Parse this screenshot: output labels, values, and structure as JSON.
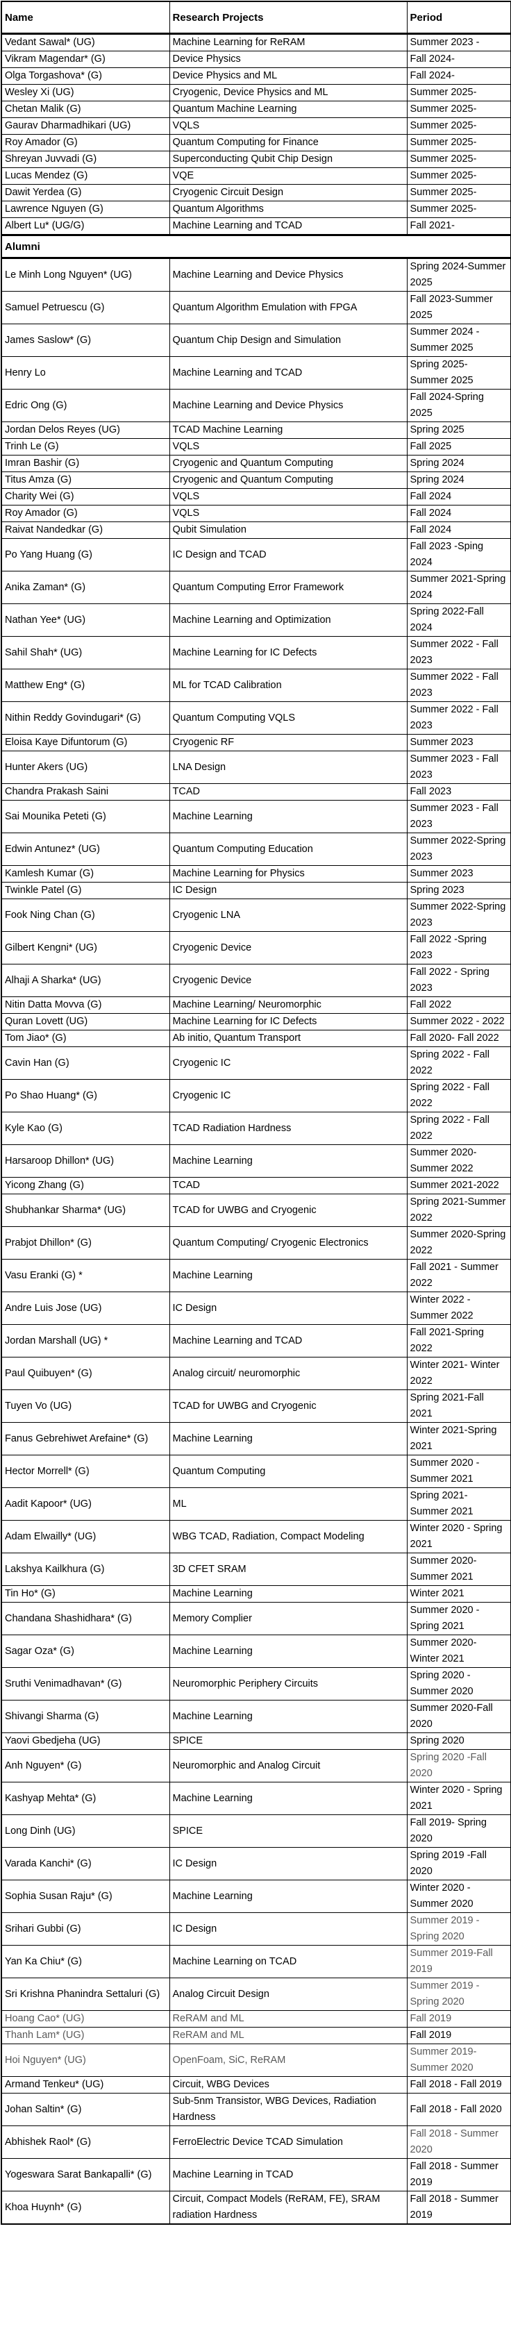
{
  "table": {
    "columns": [
      "Name",
      "Research Projects",
      "Period"
    ],
    "section_label": "Alumni",
    "grey_text_color": "#595959",
    "current_members": [
      {
        "name": "Vedant Sawal* (UG)",
        "project": "Machine Learning for ReRAM",
        "period": "Summer 2023 -"
      },
      {
        "name": "Vikram Magendar* (G)",
        "project": "Device Physics",
        "period": "Fall 2024-"
      },
      {
        "name": "Olga Torgashova* (G)",
        "project": "Device Physics and ML",
        "period": "Fall 2024-"
      },
      {
        "name": "Wesley Xi (UG)",
        "project": "Cryogenic, Device Physics and ML",
        "period": "Summer 2025-"
      },
      {
        "name": "Chetan Malik (G)",
        "project": "Quantum Machine Learning",
        "period": "Summer 2025-"
      },
      {
        "name": "Gaurav Dharmadhikari (UG)",
        "project": "VQLS",
        "period": "Summer 2025-"
      },
      {
        "name": "Roy Amador (G)",
        "project": "Quantum Computing for Finance",
        "period": "Summer 2025-"
      },
      {
        "name": "Shreyan Juvvadi (G)",
        "project": "Superconducting Qubit Chip Design",
        "period": "Summer 2025-"
      },
      {
        "name": "Lucas Mendez (G)",
        "project": "VQE",
        "period": "Summer 2025-"
      },
      {
        "name": "Dawit Yerdea (G)",
        "project": "Cryogenic Circuit Design",
        "period": "Summer 2025-"
      },
      {
        "name": "Lawrence Nguyen (G)",
        "project": "Quantum Algorithms",
        "period": "Summer 2025-"
      },
      {
        "name": "Albert Lu* (UG/G)",
        "project": "Machine Learning and TCAD",
        "period": "Fall 2021-"
      }
    ],
    "alumni_members": [
      {
        "name": "Le Minh Long Nguyen* (UG)",
        "project": "Machine Learning and Device Physics",
        "period": "Spring 2024-Summer 2025"
      },
      {
        "name": "Samuel Petruescu (G)",
        "project": "Quantum Algorithm Emulation with FPGA",
        "period": "Fall 2023-Summer 2025"
      },
      {
        "name": "James Saslow* (G)",
        "project": "Quantum Chip Design and Simulation",
        "period": "Summer 2024 - Summer 2025"
      },
      {
        "name": "Henry Lo",
        "project": "Machine Learning and TCAD",
        "period": "Spring 2025- Summer 2025"
      },
      {
        "name": "Edric Ong (G)",
        "project": "Machine Learning and Device Physics",
        "period": "Fall 2024-Spring 2025"
      },
      {
        "name": "Jordan Delos Reyes (UG)",
        "project": "TCAD Machine Learning",
        "period": "Spring 2025"
      },
      {
        "name": "Trinh Le (G)",
        "project": "VQLS",
        "period": "Fall 2025"
      },
      {
        "name": "Imran Bashir (G)",
        "project": "Cryogenic and Quantum Computing",
        "period": "Spring 2024"
      },
      {
        "name": "Titus Amza (G)",
        "project": "Cryogenic and Quantum Computing",
        "period": "Spring 2024"
      },
      {
        "name": "Charity Wei (G)",
        "project": "VQLS",
        "period": "Fall 2024"
      },
      {
        "name": "Roy Amador (G)",
        "project": "VQLS",
        "period": "Fall 2024"
      },
      {
        "name": "Raivat Nandedkar (G)",
        "project": "Qubit Simulation",
        "period": "Fall 2024"
      },
      {
        "name": "Po Yang Huang (G)",
        "project": "IC Design and TCAD",
        "period": "Fall 2023 -Sping 2024"
      },
      {
        "name": "Anika Zaman* (G)",
        "project": "Quantum Computing Error Framework",
        "period": "Summer 2021-Spring 2024"
      },
      {
        "name": "Nathan Yee* (UG)",
        "project": "Machine Learning and Optimization",
        "period": "Spring 2022-Fall 2024"
      },
      {
        "name": "Sahil Shah* (UG)",
        "project": "Machine Learning for IC Defects",
        "period": "Summer 2022 - Fall 2023"
      },
      {
        "name": "Matthew Eng* (G)",
        "project": "ML for TCAD Calibration",
        "period": "Summer 2022 - Fall 2023"
      },
      {
        "name": "Nithin Reddy Govindugari* (G)",
        "project": "Quantum Computing VQLS",
        "period": "Summer 2022 - Fall 2023"
      },
      {
        "name": "Eloisa Kaye Difuntorum (G)",
        "project": "Cryogenic RF",
        "period": "Summer 2023"
      },
      {
        "name": "Hunter Akers (UG)",
        "project": "LNA Design",
        "period": "Summer 2023 - Fall 2023"
      },
      {
        "name": "Chandra Prakash Saini",
        "project": "TCAD",
        "period": "Fall 2023"
      },
      {
        "name": "Sai Mounika Peteti (G)",
        "project": "Machine Learning",
        "period": "Summer 2023 - Fall 2023"
      },
      {
        "name": "Edwin Antunez* (UG)",
        "project": "Quantum Computing Education",
        "period": "Summer 2022-Spring 2023"
      },
      {
        "name": "Kamlesh Kumar (G)",
        "project": "Machine Learning for Physics",
        "period": "Summer 2023"
      },
      {
        "name": "Twinkle Patel (G)",
        "project": "IC Design",
        "period": "Spring 2023"
      },
      {
        "name": "Fook Ning Chan (G)",
        "project": "Cryogenic LNA",
        "period": "Summer 2022-Spring 2023"
      },
      {
        "name": "Gilbert Kengni* (UG)",
        "project": "Cryogenic Device",
        "period": "Fall 2022 -Spring 2023"
      },
      {
        "name": "Alhaji A Sharka* (UG)",
        "project": "Cryogenic Device",
        "period": "Fall 2022 - Spring 2023"
      },
      {
        "name": "Nitin Datta Movva (G)",
        "project": "Machine Learning/ Neuromorphic",
        "period": "Fall 2022"
      },
      {
        "name": "Quran Lovett (UG)",
        "project": "Machine Learning for IC Defects",
        "period": "Summer 2022 - 2022"
      },
      {
        "name": "Tom Jiao* (G)",
        "project": "Ab initio, Quantum Transport",
        "period": "Fall 2020- Fall 2022"
      },
      {
        "name": "Cavin Han (G)",
        "project": "Cryogenic IC",
        "period": "Spring 2022 - Fall 2022"
      },
      {
        "name": "Po Shao Huang* (G)",
        "project": "Cryogenic IC",
        "period": "Spring 2022 - Fall 2022"
      },
      {
        "name": "Kyle Kao (G)",
        "project": "TCAD Radiation Hardness",
        "period": "Spring 2022 - Fall 2022"
      },
      {
        "name": "Harsaroop Dhillon* (UG)",
        "project": "Machine Learning",
        "period": "Summer 2020-Summer 2022"
      },
      {
        "name": "Yicong Zhang (G)",
        "project": "TCAD",
        "period": "Summer 2021-2022"
      },
      {
        "name": "Shubhankar Sharma* (UG)",
        "project": "TCAD for UWBG and Cryogenic",
        "period": "Spring 2021-Summer 2022"
      },
      {
        "name": "Prabjot Dhillon* (G)",
        "project": "Quantum Computing/ Cryogenic Electronics",
        "period": "Summer 2020-Spring 2022"
      },
      {
        "name": "Vasu Eranki (G) *",
        "project": "Machine Learning",
        "period": "Fall 2021 - Summer 2022"
      },
      {
        "name": "Andre Luis Jose (UG)",
        "project": "IC Design",
        "period": "Winter 2022 - Summer 2022"
      },
      {
        "name": "Jordan Marshall (UG) *",
        "project": "Machine Learning and TCAD",
        "period": "Fall 2021-Spring 2022"
      },
      {
        "name": "Paul Quibuyen* (G)",
        "project": "Analog circuit/ neuromorphic",
        "period": "Winter 2021- Winter 2022"
      },
      {
        "name": "Tuyen Vo (UG)",
        "project": "TCAD for UWBG and Cryogenic",
        "period": "Spring 2021-Fall 2021"
      },
      {
        "name": "Fanus Gebrehiwet Arefaine* (G)",
        "project": "Machine Learning",
        "period": "Winter 2021-Spring 2021"
      },
      {
        "name": "Hector Morrell* (G)",
        "project": "Quantum Computing",
        "period": "Summer 2020 - Summer 2021"
      },
      {
        "name": "Aadit Kapoor* (UG)",
        "project": "ML",
        "period": "Spring 2021- Summer 2021"
      },
      {
        "name": "Adam Elwailly* (UG)",
        "project": "WBG TCAD, Radiation, Compact Modeling",
        "period": "Winter 2020 - Spring 2021"
      },
      {
        "name": "Lakshya Kailkhura (G)",
        "project": "3D CFET SRAM",
        "period": "Summer 2020- Summer 2021"
      },
      {
        "name": "Tin Ho* (G)",
        "project": "Machine Learning",
        "period": "Winter 2021"
      },
      {
        "name": "Chandana Shashidhara* (G)",
        "project": "Memory Complier",
        "period": "Summer 2020 - Spring 2021"
      },
      {
        "name": "Sagar Oza* (G)",
        "project": "Machine Learning",
        "period": "Summer 2020- Winter 2021"
      },
      {
        "name": "Sruthi Venimadhavan* (G)",
        "project": "Neuromorphic Periphery Circuits",
        "period": "Spring 2020 - Summer 2020"
      },
      {
        "name": "Shivangi Sharma (G)",
        "project": "Machine Learning",
        "period": "Summer 2020-Fall 2020"
      },
      {
        "name": "Yaovi Gbedjeha (UG)",
        "project": "SPICE",
        "period": "Spring 2020"
      },
      {
        "name": "Anh Nguyen* (G)",
        "project": "Neuromorphic and Analog Circuit",
        "period": "Spring 2020 -Fall 2020",
        "grey": [
          "period"
        ]
      },
      {
        "name": "Kashyap Mehta* (G)",
        "project": "Machine Learning",
        "period": "Winter 2020 - Spring 2021"
      },
      {
        "name": "Long Dinh (UG)",
        "project": "SPICE",
        "period": "Fall 2019- Spring 2020"
      },
      {
        "name": "Varada Kanchi* (G)",
        "project": "IC Design",
        "period": "Spring 2019 -Fall 2020"
      },
      {
        "name": "Sophia Susan Raju* (G)",
        "project": "Machine Learning",
        "period": "Winter 2020 - Summer 2020"
      },
      {
        "name": "Srihari Gubbi (G)",
        "project": "IC Design",
        "period": "Summer 2019 - Spring 2020",
        "grey": [
          "period"
        ]
      },
      {
        "name": "Yan Ka Chiu* (G)",
        "project": "Machine Learning on TCAD",
        "period": "Summer 2019-Fall 2019",
        "grey": [
          "period"
        ]
      },
      {
        "name": "Sri Krishna Phanindra Settaluri (G)",
        "project": "Analog Circuit Design",
        "period": "Summer 2019 - Spring 2020",
        "grey": [
          "period"
        ]
      },
      {
        "name": "Hoang Cao* (UG)",
        "project": "ReRAM and ML",
        "period": "Fall 2019",
        "grey": [
          "name",
          "project",
          "period"
        ]
      },
      {
        "name": "Thanh Lam* (UG)",
        "project": "ReRAM and ML",
        "period": "Fall 2019",
        "grey": [
          "name",
          "project"
        ]
      },
      {
        "name": "Hoi Nguyen* (UG)",
        "project": "OpenFoam, SiC, ReRAM",
        "period": "Summer 2019- Summer 2020",
        "grey": [
          "name",
          "project",
          "period"
        ]
      },
      {
        "name": "Armand Tenkeu* (UG)",
        "project": "Circuit, WBG Devices",
        "period": "Fall 2018 - Fall 2019"
      },
      {
        "name": "Johan Saltin* (G)",
        "project": "Sub-5nm Transistor, WBG Devices, Radiation Hardness",
        "period": "Fall 2018 - Fall 2020"
      },
      {
        "name": "Abhishek Raol* (G)",
        "project": "FerroElectric Device TCAD Simulation",
        "period": "Fall 2018 - Summer 2020",
        "grey": [
          "period"
        ]
      },
      {
        "name": "Yogeswara Sarat Bankapalli* (G)",
        "project": "Machine Learning in TCAD",
        "period": "Fall 2018 - Summer 2019"
      },
      {
        "name": "Khoa Huynh* (G)",
        "project": "Circuit, Compact Models (ReRAM, FE), SRAM radiation Hardness",
        "period": "Fall 2018 - Summer 2019"
      }
    ]
  }
}
